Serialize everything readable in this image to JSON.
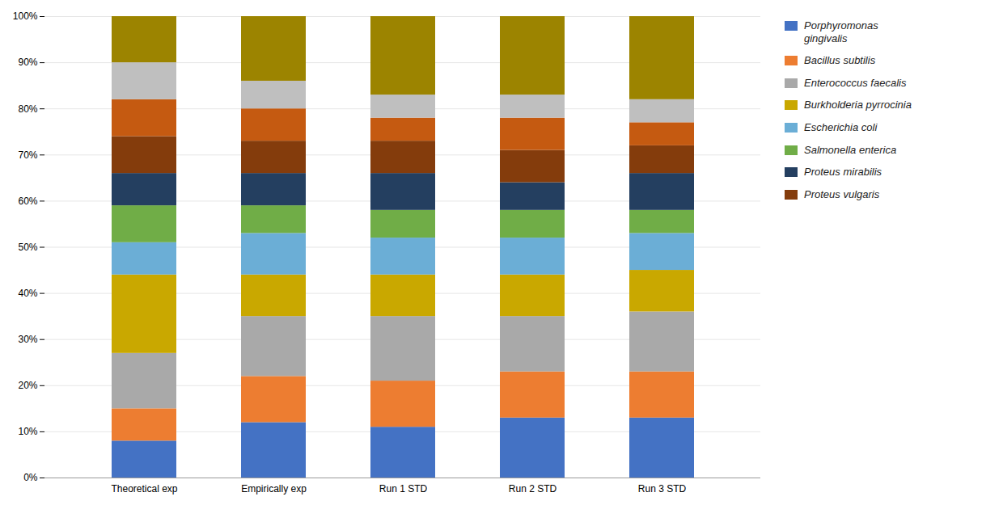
{
  "chart_data": {
    "type": "bar",
    "stacked": true,
    "categories": [
      "Theoretical exp",
      "Empirically exp",
      "Run 1 STD",
      "Run 2 STD",
      "Run 3 STD"
    ],
    "series": [
      {
        "name": "Porphyromonas\ngingivalis",
        "color": "#4472C4",
        "values": [
          8.0,
          12.0,
          11.0,
          13.0,
          13.0
        ]
      },
      {
        "name": "Bacillus subtilis",
        "color": "#ED7D31",
        "values": [
          7.0,
          10.0,
          10.0,
          10.0,
          10.0
        ]
      },
      {
        "name": "Enterococcus faecalis",
        "color": "#A9A9A9",
        "values": [
          12.0,
          13.0,
          14.0,
          12.0,
          13.0
        ]
      },
      {
        "name": "Burkholderia pyrrocinia",
        "color": "#C9A800",
        "values": [
          17.0,
          9.0,
          9.0,
          9.0,
          9.0
        ]
      },
      {
        "name": "Escherichia coli",
        "color": "#6BAED6",
        "values": [
          7.0,
          9.0,
          8.0,
          8.0,
          8.0
        ]
      },
      {
        "name": "Salmonella enterica",
        "color": "#70AD47",
        "values": [
          8.0,
          6.0,
          6.0,
          6.0,
          5.0
        ]
      },
      {
        "name": "Proteus mirabilis",
        "color": "#243F60",
        "values": [
          7.0,
          7.0,
          8.0,
          6.0,
          8.0
        ]
      },
      {
        "name": "Proteus vulgaris",
        "color": "#843C0C",
        "values": [
          8.0,
          7.0,
          7.0,
          7.0,
          6.0
        ]
      },
      {
        "color": "#C55A11",
        "values": [
          8.0,
          7.0,
          5.0,
          7.0,
          5.0
        ]
      },
      {
        "color": "#BFBFBF",
        "values": [
          8.0,
          6.0,
          5.0,
          5.0,
          5.0
        ]
      },
      {
        "color": "#9C8400",
        "values": [
          10.0,
          14.0,
          17.0,
          17.0,
          18.0
        ]
      }
    ],
    "ylim": [
      0,
      100
    ],
    "yticks": [
      {
        "value": 0,
        "label": "0%"
      },
      {
        "value": 10,
        "label": "10%"
      },
      {
        "value": 20,
        "label": "20%"
      },
      {
        "value": 30,
        "label": "30%"
      },
      {
        "value": 40,
        "label": "40%"
      },
      {
        "value": 50,
        "label": "50%"
      },
      {
        "value": 60,
        "label": "60%"
      },
      {
        "value": 70,
        "label": "70%"
      },
      {
        "value": 80,
        "label": "80%"
      },
      {
        "value": 90,
        "label": "90%"
      },
      {
        "value": 100,
        "label": "100%"
      }
    ],
    "grid": true,
    "legend": "right"
  }
}
